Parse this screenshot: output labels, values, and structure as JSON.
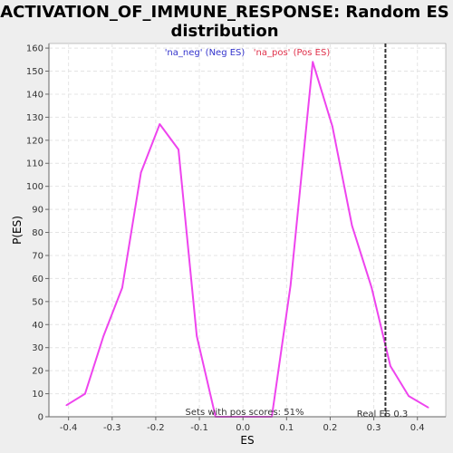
{
  "chart_data": {
    "type": "line",
    "title_lines": [
      "ACTIVATION_OF_IMMUNE_RESPONSE: Random ES",
      "distribution"
    ],
    "xlabel": "ES",
    "ylabel": "P(ES)",
    "xlim": [
      -0.445,
      0.465
    ],
    "ylim": [
      0,
      162
    ],
    "x_ticks": [
      -0.4,
      -0.3,
      -0.2,
      -0.1,
      0.0,
      0.1,
      0.2,
      0.3,
      0.4
    ],
    "x_tick_labels": [
      "-0.4",
      "-0.3",
      "-0.2",
      "-0.1",
      "0.0",
      "0.1",
      "0.2",
      "0.3",
      "0.4"
    ],
    "y_ticks": [
      0,
      10,
      20,
      30,
      40,
      50,
      60,
      70,
      80,
      90,
      100,
      110,
      120,
      130,
      140,
      150,
      160
    ],
    "y_tick_labels": [
      "0",
      "10",
      "20",
      "30",
      "40",
      "50",
      "60",
      "70",
      "80",
      "90",
      "100",
      "110",
      "120",
      "130",
      "140",
      "150",
      "160"
    ],
    "grid": true,
    "legend": {
      "placement": "top",
      "entries": [
        {
          "label": "'na_neg' (Neg ES)",
          "color": "#3333cc"
        },
        {
          "label": "'na_pos' (Pos ES)",
          "color": "#e0304a"
        }
      ]
    },
    "series": [
      {
        "color": "#ee44ee",
        "x": [
          -0.405,
          -0.362,
          -0.32,
          -0.277,
          -0.234,
          -0.191,
          -0.148,
          -0.106,
          -0.063,
          -0.02,
          0.023,
          0.066,
          0.109,
          0.16,
          0.205,
          0.25,
          0.295,
          0.338,
          0.38,
          0.425
        ],
        "y": [
          5,
          10,
          35,
          56,
          106,
          127,
          116,
          35,
          0,
          0,
          0,
          0,
          57,
          154,
          126,
          83,
          56,
          22,
          9,
          4
        ]
      }
    ],
    "real_es": {
      "value": 0.3267,
      "label": "Real ES 0.3",
      "color": "#333333"
    },
    "annotation": "Sets with pos scores: 51%",
    "colors": {
      "background": "#eeeeee",
      "plot_background": "#ffffff",
      "grid": "#e4e4e4"
    }
  }
}
